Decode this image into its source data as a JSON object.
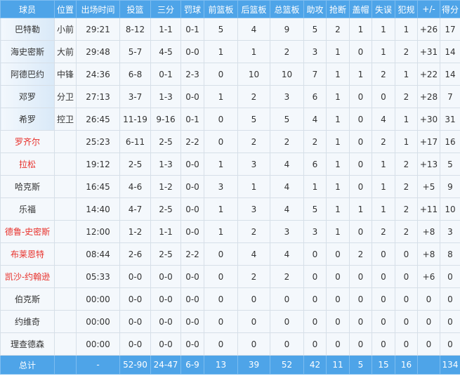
{
  "headers": [
    "球员",
    "位置",
    "出场时间",
    "投篮",
    "三分",
    "罚球",
    "前篮板",
    "后篮板",
    "总篮板",
    "助攻",
    "抢断",
    "盖帽",
    "失误",
    "犯规",
    "+/-",
    "得分"
  ],
  "highlight_color": "#e8302a",
  "header_color": "#4ea4e8",
  "players": [
    {
      "starter": true,
      "highlight": false,
      "cells": [
        "巴特勒",
        "小前",
        "29:21",
        "8-12",
        "1-1",
        "0-1",
        "5",
        "4",
        "9",
        "5",
        "2",
        "1",
        "1",
        "1",
        "+26",
        "17"
      ]
    },
    {
      "starter": true,
      "highlight": false,
      "cells": [
        "海史密斯",
        "大前",
        "29:48",
        "5-7",
        "4-5",
        "0-0",
        "1",
        "1",
        "2",
        "3",
        "1",
        "0",
        "1",
        "2",
        "+31",
        "14"
      ]
    },
    {
      "starter": true,
      "highlight": false,
      "cells": [
        "阿德巴约",
        "中锋",
        "24:36",
        "6-8",
        "0-1",
        "2-3",
        "0",
        "10",
        "10",
        "7",
        "1",
        "1",
        "2",
        "1",
        "+22",
        "14"
      ]
    },
    {
      "starter": true,
      "highlight": false,
      "cells": [
        "邓罗",
        "分卫",
        "27:13",
        "3-7",
        "1-3",
        "0-0",
        "1",
        "2",
        "3",
        "6",
        "1",
        "0",
        "0",
        "2",
        "+28",
        "7"
      ]
    },
    {
      "starter": true,
      "highlight": false,
      "cells": [
        "希罗",
        "控卫",
        "26:45",
        "11-19",
        "9-16",
        "0-1",
        "0",
        "5",
        "5",
        "4",
        "1",
        "0",
        "4",
        "1",
        "+30",
        "31"
      ]
    },
    {
      "starter": false,
      "highlight": true,
      "cells": [
        "罗齐尔",
        "",
        "25:23",
        "6-11",
        "2-5",
        "2-2",
        "0",
        "2",
        "2",
        "2",
        "1",
        "0",
        "2",
        "1",
        "+17",
        "16"
      ]
    },
    {
      "starter": false,
      "highlight": true,
      "cells": [
        "拉松",
        "",
        "19:12",
        "2-5",
        "1-3",
        "0-0",
        "1",
        "3",
        "4",
        "6",
        "1",
        "0",
        "1",
        "2",
        "+13",
        "5"
      ]
    },
    {
      "starter": false,
      "highlight": false,
      "cells": [
        "哈克斯",
        "",
        "16:45",
        "4-6",
        "1-2",
        "0-0",
        "3",
        "1",
        "4",
        "1",
        "1",
        "0",
        "1",
        "2",
        "+5",
        "9"
      ]
    },
    {
      "starter": false,
      "highlight": false,
      "cells": [
        "乐福",
        "",
        "14:40",
        "4-7",
        "2-5",
        "0-0",
        "1",
        "3",
        "4",
        "5",
        "1",
        "1",
        "1",
        "2",
        "+11",
        "10"
      ]
    },
    {
      "starter": false,
      "highlight": true,
      "cells": [
        "德鲁-史密斯",
        "",
        "12:00",
        "1-2",
        "1-1",
        "0-0",
        "1",
        "2",
        "3",
        "3",
        "1",
        "0",
        "2",
        "2",
        "+8",
        "3"
      ]
    },
    {
      "starter": false,
      "highlight": true,
      "cells": [
        "布莱恩特",
        "",
        "08:44",
        "2-6",
        "2-5",
        "2-2",
        "0",
        "4",
        "4",
        "0",
        "0",
        "2",
        "0",
        "0",
        "+8",
        "8"
      ]
    },
    {
      "starter": false,
      "highlight": true,
      "cells": [
        "凯沙-约翰逊",
        "",
        "05:33",
        "0-0",
        "0-0",
        "0-0",
        "0",
        "2",
        "2",
        "0",
        "0",
        "0",
        "0",
        "0",
        "+6",
        "0"
      ]
    },
    {
      "starter": false,
      "highlight": false,
      "cells": [
        "伯克斯",
        "",
        "00:00",
        "0-0",
        "0-0",
        "0-0",
        "0",
        "0",
        "0",
        "0",
        "0",
        "0",
        "0",
        "0",
        "0",
        "0"
      ]
    },
    {
      "starter": false,
      "highlight": false,
      "cells": [
        "约维奇",
        "",
        "00:00",
        "0-0",
        "0-0",
        "0-0",
        "0",
        "0",
        "0",
        "0",
        "0",
        "0",
        "0",
        "0",
        "0",
        "0"
      ]
    },
    {
      "starter": false,
      "highlight": false,
      "cells": [
        "理查德森",
        "",
        "00:00",
        "0-0",
        "0-0",
        "0-0",
        "0",
        "0",
        "0",
        "0",
        "0",
        "0",
        "0",
        "0",
        "0",
        "0"
      ]
    }
  ],
  "totals": [
    "总计",
    "",
    "-",
    "52-90",
    "24-47",
    "6-9",
    "13",
    "39",
    "52",
    "42",
    "11",
    "5",
    "15",
    "16",
    "",
    "134"
  ]
}
